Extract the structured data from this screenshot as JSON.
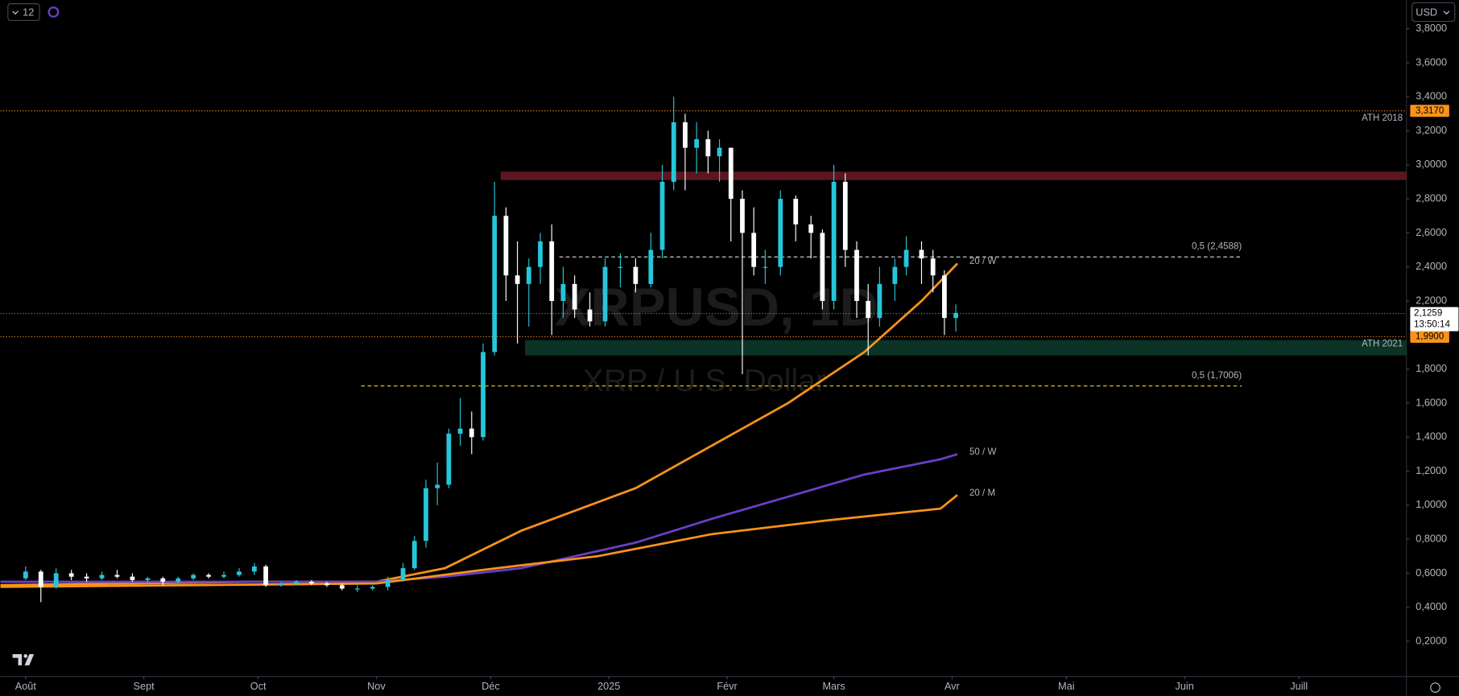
{
  "toolbar": {
    "interval": "12",
    "currency": "USD"
  },
  "chart_data": {
    "type": "candlestick",
    "symbol": "XRPUSD, 1D",
    "description": "XRP / U.S. Dollar",
    "xlim": [
      -6.6,
      362.2
    ],
    "xticks": [
      {
        "value": 0,
        "label": "Août"
      },
      {
        "value": 31,
        "label": "Sept"
      },
      {
        "value": 61,
        "label": "Oct"
      },
      {
        "value": 92,
        "label": "Nov"
      },
      {
        "value": 122,
        "label": "Déc"
      },
      {
        "value": 153,
        "label": "2025"
      },
      {
        "value": 184,
        "label": "Févr"
      },
      {
        "value": 212,
        "label": "Mars"
      },
      {
        "value": 243,
        "label": "Avr"
      },
      {
        "value": 273,
        "label": "Mai"
      },
      {
        "value": 304,
        "label": "Juin"
      },
      {
        "value": 334,
        "label": "Juill"
      }
    ],
    "ylim": [
      0.1,
      3.9
    ],
    "yticks": [
      {
        "value": 0.2,
        "label": "0,2000"
      },
      {
        "value": 0.4,
        "label": "0,4000"
      },
      {
        "value": 0.6,
        "label": "0,6000"
      },
      {
        "value": 0.8,
        "label": "0,8000"
      },
      {
        "value": 1.0,
        "label": "1,0000"
      },
      {
        "value": 1.2,
        "label": "1,2000"
      },
      {
        "value": 1.4,
        "label": "1,4000"
      },
      {
        "value": 1.6,
        "label": "1,6000"
      },
      {
        "value": 1.8,
        "label": "1,8000"
      },
      {
        "value": 2.2,
        "label": "2,2000"
      },
      {
        "value": 2.4,
        "label": "2,4000"
      },
      {
        "value": 2.6,
        "label": "2,6000"
      },
      {
        "value": 2.8,
        "label": "2,8000"
      },
      {
        "value": 3.0,
        "label": "3,0000"
      },
      {
        "value": 3.2,
        "label": "3,2000"
      },
      {
        "value": 3.4,
        "label": "3,4000"
      },
      {
        "value": 3.6,
        "label": "3,6000"
      },
      {
        "value": 3.8,
        "label": "3,8000"
      }
    ],
    "up_color": "#26c6da",
    "down_color": "#ffffff",
    "x": [
      0,
      4,
      8,
      12,
      16,
      20,
      24,
      28,
      32,
      36,
      40,
      44,
      48,
      52,
      56,
      60,
      63,
      67,
      71,
      75,
      79,
      83,
      87,
      91,
      95,
      99,
      102,
      105,
      108,
      111,
      114,
      117,
      120,
      123,
      126,
      129,
      132,
      135,
      138,
      141,
      144,
      148,
      152,
      156,
      160,
      164,
      167,
      170,
      173,
      176,
      179,
      182,
      185,
      188,
      191,
      194,
      198,
      202,
      206,
      209,
      212,
      215,
      218,
      221,
      224,
      228,
      231,
      235,
      238,
      241,
      244
    ],
    "open": [
      0.57,
      0.61,
      0.52,
      0.6,
      0.58,
      0.57,
      0.59,
      0.58,
      0.56,
      0.57,
      0.55,
      0.57,
      0.59,
      0.58,
      0.59,
      0.61,
      0.64,
      0.53,
      0.54,
      0.55,
      0.54,
      0.53,
      0.51,
      0.51,
      0.52,
      0.56,
      0.63,
      0.79,
      1.1,
      1.12,
      1.42,
      1.45,
      1.4,
      1.9,
      2.7,
      2.35,
      2.3,
      2.4,
      2.55,
      2.2,
      2.3,
      2.15,
      2.08,
      2.4,
      2.4,
      2.3,
      2.5,
      2.9,
      3.25,
      3.1,
      3.15,
      3.05,
      3.1,
      2.8,
      2.6,
      2.4,
      2.4,
      2.8,
      2.65,
      2.6,
      2.2,
      2.9,
      2.5,
      2.2,
      2.1,
      2.3,
      2.4,
      2.5,
      2.45,
      2.35,
      2.1
    ],
    "high": [
      0.64,
      0.62,
      0.63,
      0.62,
      0.6,
      0.61,
      0.62,
      0.6,
      0.58,
      0.58,
      0.58,
      0.6,
      0.6,
      0.61,
      0.63,
      0.66,
      0.65,
      0.55,
      0.56,
      0.56,
      0.55,
      0.54,
      0.53,
      0.53,
      0.58,
      0.66,
      0.82,
      1.15,
      1.25,
      1.45,
      1.63,
      1.55,
      1.95,
      2.9,
      2.75,
      2.55,
      2.45,
      2.6,
      2.65,
      2.4,
      2.35,
      2.25,
      2.45,
      2.48,
      2.45,
      2.6,
      3.0,
      3.4,
      3.3,
      3.25,
      3.2,
      3.15,
      3.1,
      2.85,
      2.75,
      2.5,
      2.85,
      2.82,
      2.7,
      2.62,
      3.0,
      2.95,
      2.55,
      2.3,
      2.4,
      2.45,
      2.58,
      2.55,
      2.5,
      2.38,
      2.18
    ],
    "low": [
      0.56,
      0.43,
      0.51,
      0.56,
      0.55,
      0.56,
      0.57,
      0.55,
      0.54,
      0.53,
      0.54,
      0.56,
      0.57,
      0.57,
      0.58,
      0.59,
      0.52,
      0.52,
      0.53,
      0.53,
      0.52,
      0.5,
      0.49,
      0.5,
      0.5,
      0.55,
      0.62,
      0.75,
      1.0,
      1.1,
      1.35,
      1.3,
      1.38,
      1.88,
      2.2,
      1.95,
      2.05,
      2.3,
      2.0,
      2.1,
      2.1,
      2.05,
      2.05,
      2.28,
      2.25,
      2.28,
      2.45,
      2.85,
      2.85,
      2.95,
      2.95,
      2.9,
      2.55,
      1.77,
      2.35,
      2.3,
      2.35,
      2.55,
      2.45,
      2.15,
      2.15,
      2.4,
      2.1,
      1.88,
      2.05,
      2.2,
      2.35,
      2.3,
      2.25,
      2.0,
      2.02
    ],
    "close": [
      0.61,
      0.52,
      0.6,
      0.58,
      0.57,
      0.59,
      0.58,
      0.56,
      0.57,
      0.55,
      0.57,
      0.59,
      0.58,
      0.59,
      0.61,
      0.64,
      0.53,
      0.54,
      0.55,
      0.54,
      0.53,
      0.51,
      0.51,
      0.52,
      0.56,
      0.63,
      0.79,
      1.1,
      1.12,
      1.42,
      1.45,
      1.4,
      1.9,
      2.7,
      2.35,
      2.3,
      2.4,
      2.55,
      2.2,
      2.3,
      2.15,
      2.08,
      2.4,
      2.4,
      2.3,
      2.5,
      2.9,
      3.25,
      3.1,
      3.15,
      3.05,
      3.1,
      2.8,
      2.6,
      2.4,
      2.4,
      2.8,
      2.65,
      2.6,
      2.2,
      2.9,
      2.5,
      2.2,
      2.1,
      2.3,
      2.4,
      2.5,
      2.45,
      2.35,
      2.1,
      2.13
    ],
    "last_price": {
      "value": 2.1259,
      "label": "2,1259",
      "countdown": "13:50:14"
    },
    "moving_averages": [
      {
        "name": "20 / W",
        "color": "#f7931a",
        "x": [
          -6.6,
          60,
          92,
          110,
          130,
          160,
          180,
          200,
          220,
          235,
          244.4
        ],
        "values": [
          0.53,
          0.55,
          0.55,
          0.63,
          0.85,
          1.1,
          1.35,
          1.6,
          1.9,
          2.2,
          2.42
        ]
      },
      {
        "name": "50 / W",
        "color": "#6a3fc8",
        "x": [
          -6.6,
          92,
          110,
          130,
          160,
          180,
          200,
          220,
          240,
          244.4
        ],
        "values": [
          0.55,
          0.55,
          0.58,
          0.63,
          0.78,
          0.92,
          1.05,
          1.18,
          1.27,
          1.3
        ]
      },
      {
        "name": "20 / M",
        "color": "#f7931a",
        "x": [
          -6.6,
          92,
          120,
          150,
          180,
          210,
          240,
          244.4
        ],
        "values": [
          0.52,
          0.54,
          0.62,
          0.7,
          0.83,
          0.91,
          0.98,
          1.06
        ]
      }
    ],
    "levels": [
      {
        "name": "ATH 2018",
        "value": 3.317,
        "value_label": "3,3170",
        "color": "#f7931a"
      },
      {
        "name": "ATH 2021",
        "value": 1.99,
        "value_label": "1,9900",
        "color": "#f7931a"
      }
    ],
    "fib_lines": [
      {
        "name": "0,5 (2,4588)",
        "value": 2.4588,
        "x": [
          140,
          319
        ],
        "color": "#dddddd"
      },
      {
        "name": "0,5 (1,7006)",
        "value": 1.7006,
        "x": [
          88,
          319
        ],
        "color": "#f0d020"
      }
    ],
    "zones": [
      {
        "low": 2.91,
        "high": 2.96,
        "x_start": 124.6,
        "color": "#5c1620"
      },
      {
        "low": 1.88,
        "high": 1.97,
        "x_start": 131,
        "color": "#0b3326"
      }
    ]
  }
}
